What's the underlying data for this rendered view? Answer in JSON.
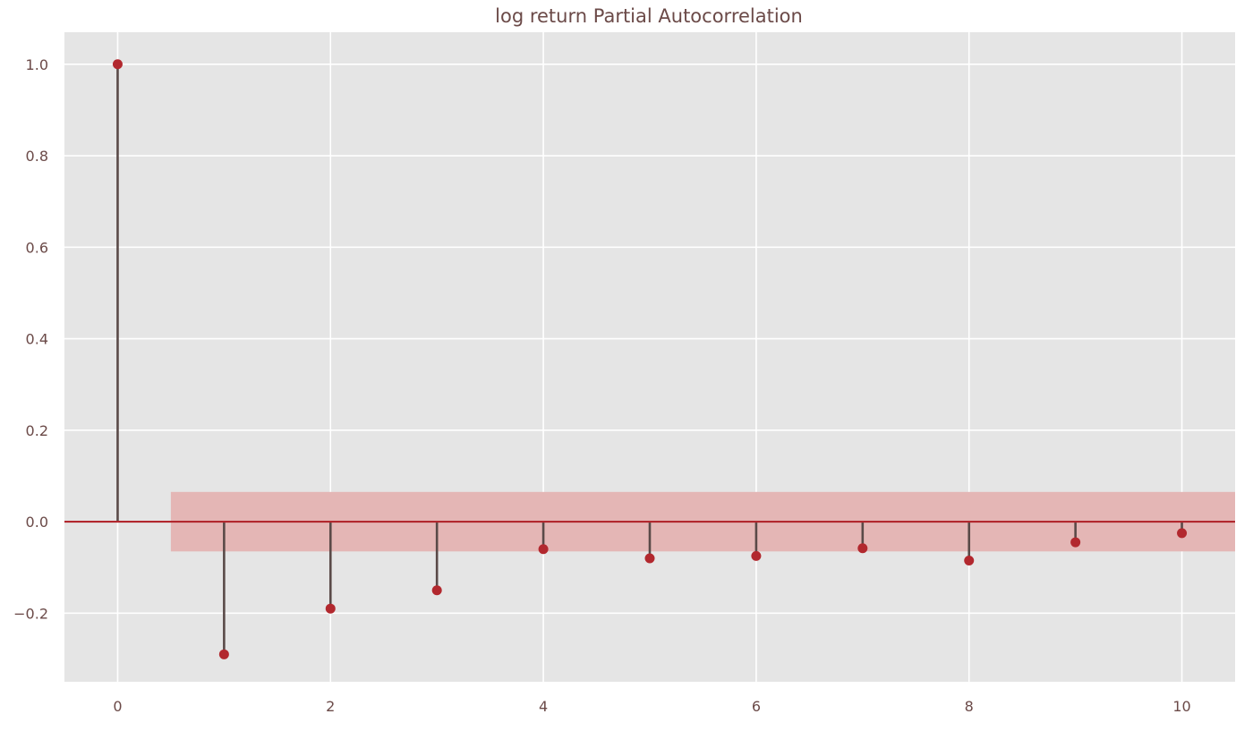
{
  "chart_data": {
    "type": "stem",
    "title": "log return Partial Autocorrelation",
    "xlabel": "",
    "ylabel": "",
    "x": [
      0,
      1,
      2,
      3,
      4,
      5,
      6,
      7,
      8,
      9,
      10
    ],
    "values": [
      1.0,
      -0.29,
      -0.19,
      -0.15,
      -0.06,
      -0.08,
      -0.075,
      -0.058,
      -0.085,
      -0.045,
      -0.025
    ],
    "confidence_band": {
      "x_range": [
        0.5,
        10.5
      ],
      "lower": -0.065,
      "upper": 0.065
    },
    "xlim": [
      -0.5,
      10.5
    ],
    "ylim": [
      -0.35,
      1.07
    ],
    "x_ticks": [
      0,
      2,
      4,
      6,
      8,
      10
    ],
    "x_tick_labels": [
      "0",
      "2",
      "4",
      "6",
      "8",
      "10"
    ],
    "y_ticks": [
      -0.2,
      0.0,
      0.2,
      0.4,
      0.6,
      0.8,
      1.0
    ],
    "y_tick_labels": [
      "−0.2",
      "0.0",
      "0.2",
      "0.4",
      "0.6",
      "0.8",
      "1.0"
    ],
    "grid": true,
    "colors": {
      "background": "#e5e5e5",
      "grid": "#ffffff",
      "stem": "#5a4a48",
      "marker": "#b2282e",
      "baseline": "#b2282e",
      "band": "#e4b6b5",
      "text": "#6b4a48"
    }
  }
}
